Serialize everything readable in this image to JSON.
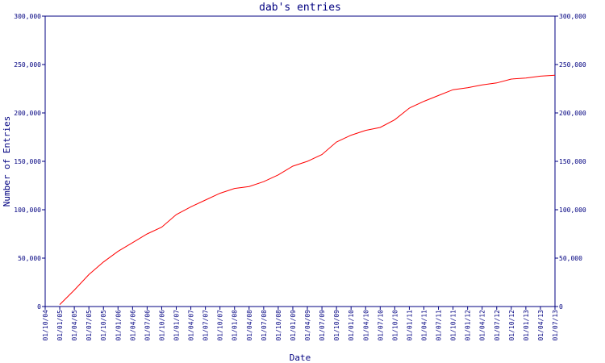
{
  "chart_data": {
    "type": "line",
    "title": "dab's entries",
    "x_label": "Date",
    "y_label": "Number of Entries",
    "categories": [
      "01/10/04",
      "01/01/05",
      "01/04/05",
      "01/07/05",
      "01/10/05",
      "01/01/06",
      "01/04/06",
      "01/07/06",
      "01/10/06",
      "01/01/07",
      "01/04/07",
      "01/07/07",
      "01/10/07",
      "01/01/08",
      "01/04/08",
      "01/07/08",
      "01/10/08",
      "01/01/09",
      "01/04/09",
      "01/07/09",
      "01/10/09",
      "01/01/10",
      "01/04/10",
      "01/07/10",
      "01/10/10",
      "01/01/11",
      "01/04/11",
      "01/07/11",
      "01/10/11",
      "01/01/12",
      "01/04/12",
      "01/07/12",
      "01/10/12",
      "01/01/13",
      "01/04/13",
      "01/07/13"
    ],
    "series": [
      {
        "name": "dab's entries",
        "color": "#ff0000",
        "values": [
          null,
          2000,
          17000,
          33000,
          46000,
          57000,
          66000,
          75000,
          82000,
          95000,
          103000,
          110000,
          117000,
          122000,
          124000,
          129000,
          136000,
          145000,
          150000,
          157000,
          170000,
          177000,
          182000,
          185000,
          193000,
          205000,
          212000,
          218000,
          224000,
          226000,
          229000,
          231000,
          235000,
          236000,
          238000,
          239000
        ]
      }
    ],
    "ylim": [
      0,
      300000
    ],
    "yticks": [
      0,
      {
        "value": 50000,
        "label": "50,000"
      },
      {
        "value": 100000,
        "label": "100,000"
      },
      {
        "value": 150000,
        "label": "150,000"
      },
      {
        "value": 200000,
        "label": "200,000"
      },
      {
        "value": 250000,
        "label": "250,000"
      },
      {
        "value": 300000,
        "label": "300,000"
      }
    ],
    "axis_color": "#000080"
  }
}
